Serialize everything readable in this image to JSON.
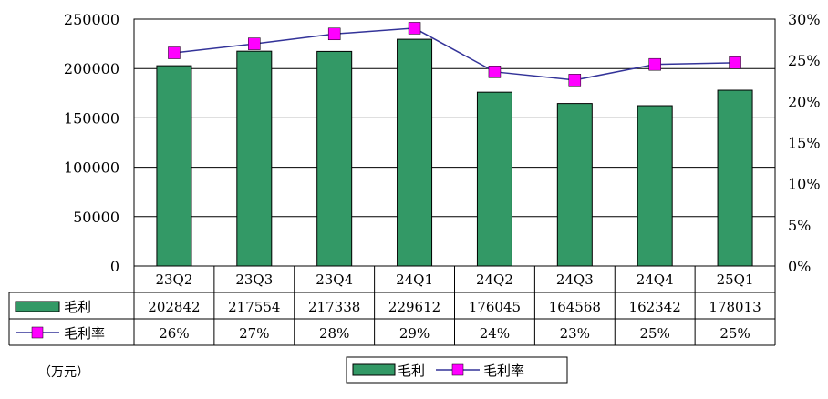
{
  "chart_data": {
    "type": "bar",
    "categories": [
      "23Q2",
      "23Q3",
      "23Q4",
      "24Q1",
      "24Q2",
      "24Q3",
      "24Q4",
      "25Q1"
    ],
    "series": [
      {
        "name": "毛利",
        "type": "bar",
        "axis": "left",
        "color": "#339966",
        "values": [
          202842,
          217554,
          217338,
          229612,
          176045,
          164568,
          162342,
          178013
        ]
      },
      {
        "name": "毛利率",
        "type": "line",
        "axis": "right",
        "color": "#ff00ff",
        "line_color": "#333399",
        "values": [
          0.26,
          0.27,
          0.28,
          0.29,
          0.24,
          0.23,
          0.25,
          0.25
        ],
        "labels": [
          "26%",
          "27%",
          "28%",
          "29%",
          "24%",
          "23%",
          "25%",
          "25%"
        ],
        "plotted": [
          0.259,
          0.27,
          0.282,
          0.289,
          0.236,
          0.226,
          0.245,
          0.247
        ]
      }
    ],
    "y_left": {
      "ylim": [
        0,
        250000
      ],
      "ticks": [
        "0",
        "50000",
        "100000",
        "150000",
        "200000",
        "250000"
      ]
    },
    "y_right": {
      "ylim": [
        0,
        0.3
      ],
      "ticks": [
        "0%",
        "5%",
        "10%",
        "15%",
        "20%",
        "25%",
        "30%"
      ]
    },
    "grid": true,
    "legend_position": "bottom-center",
    "data_table": true
  },
  "unit_label": "（万元）"
}
